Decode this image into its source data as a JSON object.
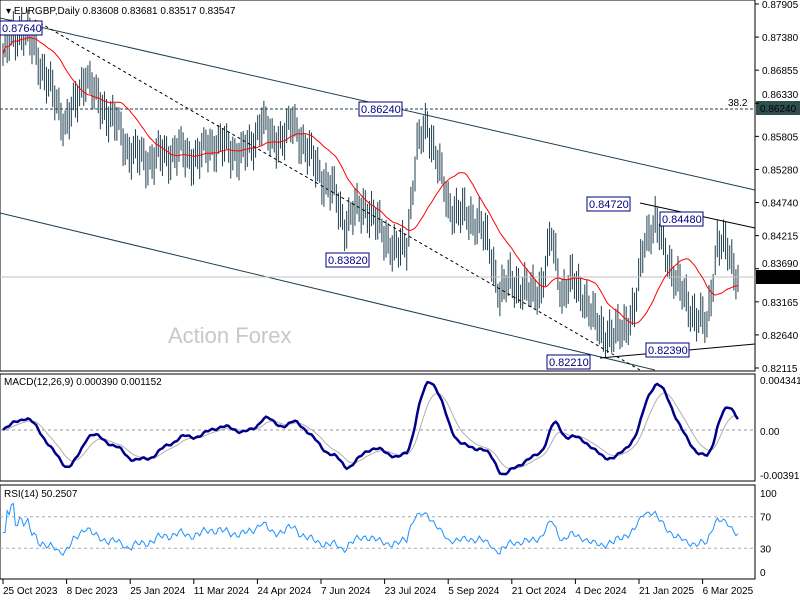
{
  "chart_data": {
    "type": "ohlc-bar",
    "title": "EURGBP,Daily",
    "ohlc_readout": "0.83608 0.83681 0.83517 0.83547",
    "last_price": "0.83547",
    "ylim": [
      0.82115,
      0.87905
    ],
    "y_ticks": [
      "0.87905",
      "0.87380",
      "0.86855",
      "0.86330",
      "0.85805",
      "0.85280",
      "0.84740",
      "0.84215",
      "0.83690",
      "0.83165",
      "0.82640",
      "0.82115"
    ],
    "x_ticks": [
      "25 Oct 2023",
      "8 Dec 2023",
      "25 Jan 2024",
      "11 Mar 2024",
      "24 Apr 2024",
      "7 Jun 2024",
      "23 Jul 2024",
      "5 Sep 2024",
      "21 Oct 2024",
      "4 Dec 2024",
      "21 Jan 2025",
      "6 Mar 2025"
    ],
    "weekly_close": [
      0.871,
      0.874,
      0.875,
      0.872,
      0.868,
      0.864,
      0.86,
      0.863,
      0.868,
      0.864,
      0.862,
      0.86,
      0.856,
      0.855,
      0.854,
      0.855,
      0.855,
      0.856,
      0.8545,
      0.855,
      0.8565,
      0.857,
      0.8555,
      0.8555,
      0.856,
      0.861,
      0.857,
      0.858,
      0.86,
      0.857,
      0.854,
      0.851,
      0.849,
      0.844,
      0.846,
      0.847,
      0.8445,
      0.842,
      0.8395,
      0.841,
      0.856,
      0.86,
      0.854,
      0.847,
      0.846,
      0.845,
      0.8445,
      0.84,
      0.833,
      0.835,
      0.834,
      0.833,
      0.834,
      0.842,
      0.833,
      0.835,
      0.833,
      0.829,
      0.827,
      0.826,
      0.828,
      0.83,
      0.842,
      0.844,
      0.84,
      0.835,
      0.832,
      0.829,
      0.828,
      0.841,
      0.84,
      0.8355
    ],
    "moving_average": "red",
    "levels": [
      {
        "label": "0.86240",
        "fib": "38.2"
      }
    ],
    "annotations": [
      "0.87640",
      "0.86240",
      "0.83820",
      "0.84720",
      "0.84480",
      "0.82390",
      "0.82210"
    ],
    "watermark": "Action Forex",
    "colors": {
      "bars": "#1f3f4f",
      "ma": "#ff0000",
      "macd": "#00008b",
      "signal": "#b0b0b0",
      "rsi": "#1e90ff"
    },
    "macd": {
      "title": "MACD(12,26,9) 0.000390 0.001152",
      "ylim": [
        -0.003916,
        0.004341
      ],
      "ticks": [
        "0.004341",
        "0.00",
        "-0.003916"
      ]
    },
    "rsi": {
      "title": "RSI(14) 50.2507",
      "ylim": [
        0,
        100
      ],
      "levels": [
        30,
        70
      ],
      "ticks": [
        "100",
        "70",
        "30",
        "0"
      ]
    }
  }
}
